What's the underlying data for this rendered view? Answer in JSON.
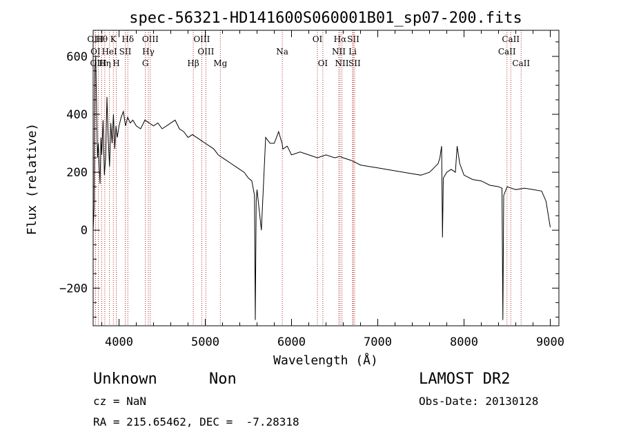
{
  "title": "spec-56321-HD141600S060001B01_sp07-200.fits",
  "footer": {
    "class_label": "Unknown",
    "subclass_label": "Non",
    "survey": "LAMOST DR2",
    "cz": "cz = NaN",
    "obs_date": "Obs-Date: 20130128",
    "coords": "RA = 215.65462, DEC =  -7.28318"
  },
  "chart_data": {
    "type": "line",
    "xlabel": "Wavelength (Å)",
    "ylabel": "Flux (relative)",
    "xlim": [
      3700,
      9100
    ],
    "ylim": [
      -330,
      690
    ],
    "xticks": [
      4000,
      5000,
      6000,
      7000,
      8000,
      9000
    ],
    "yticks": [
      -200,
      0,
      200,
      400,
      600
    ],
    "grid": false,
    "series": [
      {
        "color": "#000000",
        "x": [
          3700,
          3710,
          3720,
          3730,
          3740,
          3750,
          3760,
          3770,
          3780,
          3790,
          3800,
          3815,
          3830,
          3845,
          3860,
          3875,
          3890,
          3905,
          3920,
          3935,
          3950,
          3965,
          3980,
          4000,
          4025,
          4050,
          4075,
          4100,
          4130,
          4160,
          4200,
          4250,
          4300,
          4350,
          4400,
          4450,
          4500,
          4550,
          4600,
          4650,
          4700,
          4750,
          4800,
          4850,
          4900,
          4950,
          5000,
          5050,
          5100,
          5150,
          5200,
          5250,
          5300,
          5350,
          5400,
          5450,
          5500,
          5540,
          5570,
          5580,
          5590,
          5600,
          5650,
          5700,
          5750,
          5800,
          5850,
          5880,
          5890,
          5900,
          5950,
          6000,
          6100,
          6200,
          6300,
          6400,
          6500,
          6560,
          6600,
          6700,
          6800,
          6900,
          7000,
          7100,
          7200,
          7300,
          7400,
          7500,
          7600,
          7650,
          7700,
          7720,
          7740,
          7750,
          7760,
          7800,
          7850,
          7900,
          7920,
          7950,
          8000,
          8100,
          8200,
          8300,
          8400,
          8440,
          8450,
          8460,
          8500,
          8600,
          8700,
          8800,
          8900,
          8950,
          9000
        ],
        "values": [
          0,
          80,
          560,
          600,
          420,
          250,
          300,
          220,
          160,
          320,
          260,
          380,
          190,
          250,
          460,
          310,
          220,
          370,
          300,
          400,
          280,
          360,
          320,
          360,
          390,
          410,
          360,
          390,
          370,
          380,
          360,
          350,
          380,
          370,
          360,
          370,
          350,
          360,
          370,
          380,
          350,
          340,
          320,
          330,
          320,
          310,
          300,
          290,
          280,
          260,
          250,
          240,
          230,
          220,
          210,
          200,
          180,
          170,
          120,
          -310,
          100,
          140,
          0,
          320,
          300,
          300,
          340,
          310,
          300,
          280,
          290,
          260,
          270,
          260,
          250,
          260,
          250,
          255,
          250,
          240,
          225,
          220,
          215,
          210,
          205,
          200,
          195,
          190,
          200,
          215,
          230,
          250,
          290,
          -25,
          180,
          200,
          210,
          200,
          290,
          230,
          190,
          175,
          170,
          155,
          150,
          145,
          -310,
          120,
          150,
          140,
          145,
          140,
          135,
          100,
          10
        ]
      }
    ],
    "line_markers": [
      {
        "label": "OIII",
        "x": 3727,
        "row": 0
      },
      {
        "label": "Hθ",
        "x": 3798,
        "row": 0
      },
      {
        "label": "K",
        "x": 3934,
        "row": 0
      },
      {
        "label": "Hδ",
        "x": 4102,
        "row": 0
      },
      {
        "label": "OIII",
        "x": 4363,
        "row": 0
      },
      {
        "label": "OIII",
        "x": 4959,
        "row": 0
      },
      {
        "label": "OI",
        "x": 6300,
        "row": 0
      },
      {
        "label": "Hα",
        "x": 6563,
        "row": 0
      },
      {
        "label": "SII",
        "x": 6716,
        "row": 0
      },
      {
        "label": "CaII",
        "x": 8542,
        "row": 0
      },
      {
        "label": "OI",
        "x": 3727,
        "row": 1
      },
      {
        "label": "HeI",
        "x": 3889,
        "row": 1
      },
      {
        "label": "SII",
        "x": 4072,
        "row": 1
      },
      {
        "label": "Hγ",
        "x": 4340,
        "row": 1
      },
      {
        "label": "OIII",
        "x": 5007,
        "row": 1
      },
      {
        "label": "Na",
        "x": 5893,
        "row": 1
      },
      {
        "label": "NII",
        "x": 6548,
        "row": 1
      },
      {
        "label": "Li",
        "x": 6708,
        "row": 1
      },
      {
        "label": "CaII",
        "x": 8498,
        "row": 1
      },
      {
        "label": "OIII",
        "x": 3760,
        "row": 2
      },
      {
        "label": "Hη",
        "x": 3835,
        "row": 2
      },
      {
        "label": "H",
        "x": 3968,
        "row": 2
      },
      {
        "label": "G",
        "x": 4305,
        "row": 2
      },
      {
        "label": "Hβ",
        "x": 4861,
        "row": 2
      },
      {
        "label": "Mg",
        "x": 5175,
        "row": 2
      },
      {
        "label": "OI",
        "x": 6363,
        "row": 2
      },
      {
        "label": "NII",
        "x": 6584,
        "row": 2
      },
      {
        "label": "SII",
        "x": 6731,
        "row": 2
      },
      {
        "label": "CaII",
        "x": 8662,
        "row": 2
      }
    ]
  }
}
